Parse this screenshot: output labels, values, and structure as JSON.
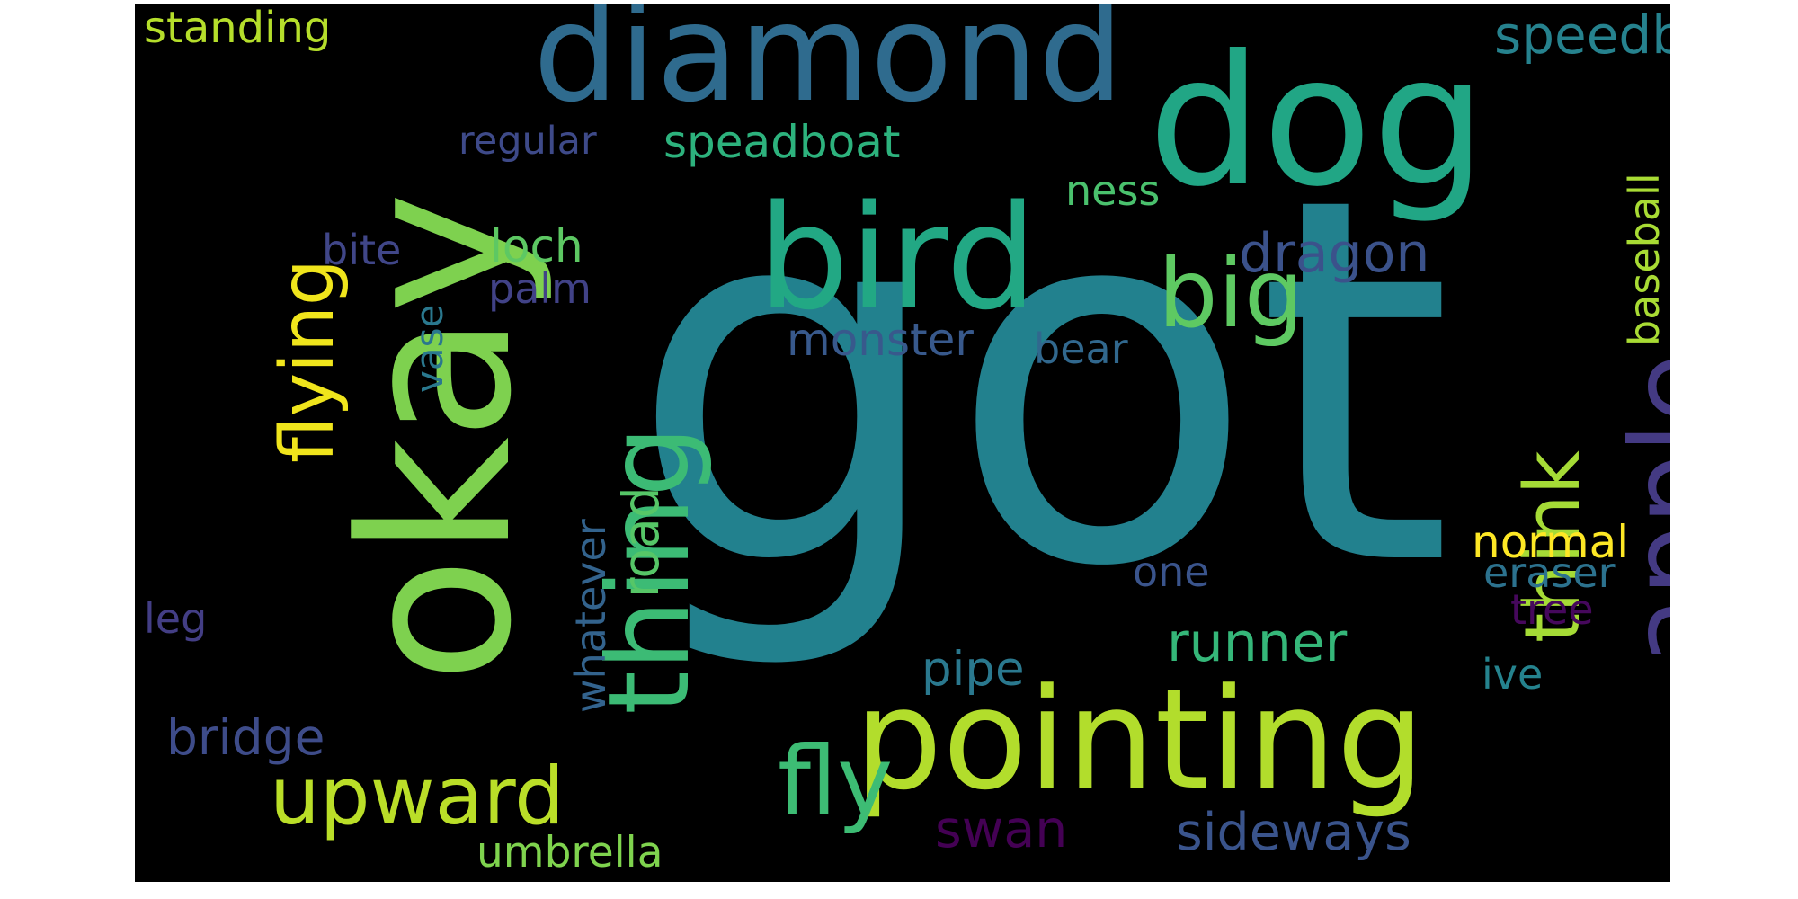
{
  "words": {
    "got": {
      "text": "got",
      "color": "#22818e"
    },
    "okay": {
      "text": "okay",
      "color": "#7ed14f"
    },
    "pointing": {
      "text": "pointing",
      "color": "#b2dd2c"
    },
    "dog": {
      "text": "dog",
      "color": "#21a685"
    },
    "diamond": {
      "text": "diamond",
      "color": "#2f6b8e"
    },
    "bird": {
      "text": "bird",
      "color": "#22a884"
    },
    "apple": {
      "text": "apple",
      "color": "#443a83"
    },
    "thing": {
      "text": "thing",
      "color": "#3cbb75"
    },
    "flying": {
      "text": "flying",
      "color": "#f0e51c"
    },
    "big": {
      "text": "big",
      "color": "#5ec962"
    },
    "upward": {
      "text": "upward",
      "color": "#bade28"
    },
    "fly": {
      "text": "fly",
      "color": "#3dbc74"
    },
    "think": {
      "text": "think",
      "color": "#a5db36"
    },
    "speedboat": {
      "text": "speedboat",
      "color": "#26828e"
    },
    "standing": {
      "text": "standing",
      "color": "#b5de2b"
    },
    "regular": {
      "text": "regular",
      "color": "#3e4a89"
    },
    "speadboat": {
      "text": "speadboat",
      "color": "#2db27d"
    },
    "ness": {
      "text": "ness",
      "color": "#4ac16d"
    },
    "bite": {
      "text": "bite",
      "color": "#404688"
    },
    "loch": {
      "text": "loch",
      "color": "#5dc863"
    },
    "dragon": {
      "text": "dragon",
      "color": "#3b528b"
    },
    "palm": {
      "text": "palm",
      "color": "#414287"
    },
    "monster": {
      "text": "monster",
      "color": "#38598c"
    },
    "bear": {
      "text": "bear",
      "color": "#31688e"
    },
    "baseball": {
      "text": "baseball",
      "color": "#a8db34"
    },
    "vase": {
      "text": "vase",
      "color": "#2a788e"
    },
    "road": {
      "text": "road",
      "color": "#56c667"
    },
    "whatever": {
      "text": "whatever",
      "color": "#33638d"
    },
    "normal": {
      "text": "normal",
      "color": "#fde725"
    },
    "one": {
      "text": "one",
      "color": "#3a548c"
    },
    "eraser": {
      "text": "eraser",
      "color": "#2c728e"
    },
    "tree": {
      "text": "tree",
      "color": "#46085c"
    },
    "leg": {
      "text": "leg",
      "color": "#433e85"
    },
    "runner": {
      "text": "runner",
      "color": "#35b779"
    },
    "pipe": {
      "text": "pipe",
      "color": "#2a788e"
    },
    "ive": {
      "text": "ive",
      "color": "#25838e"
    },
    "bridge": {
      "text": "bridge",
      "color": "#3e4c8a"
    },
    "swan": {
      "text": "swan",
      "color": "#440154"
    },
    "sideways": {
      "text": "sideways",
      "color": "#3a548c"
    },
    "umbrella": {
      "text": "umbrella",
      "color": "#7fd34e"
    }
  }
}
